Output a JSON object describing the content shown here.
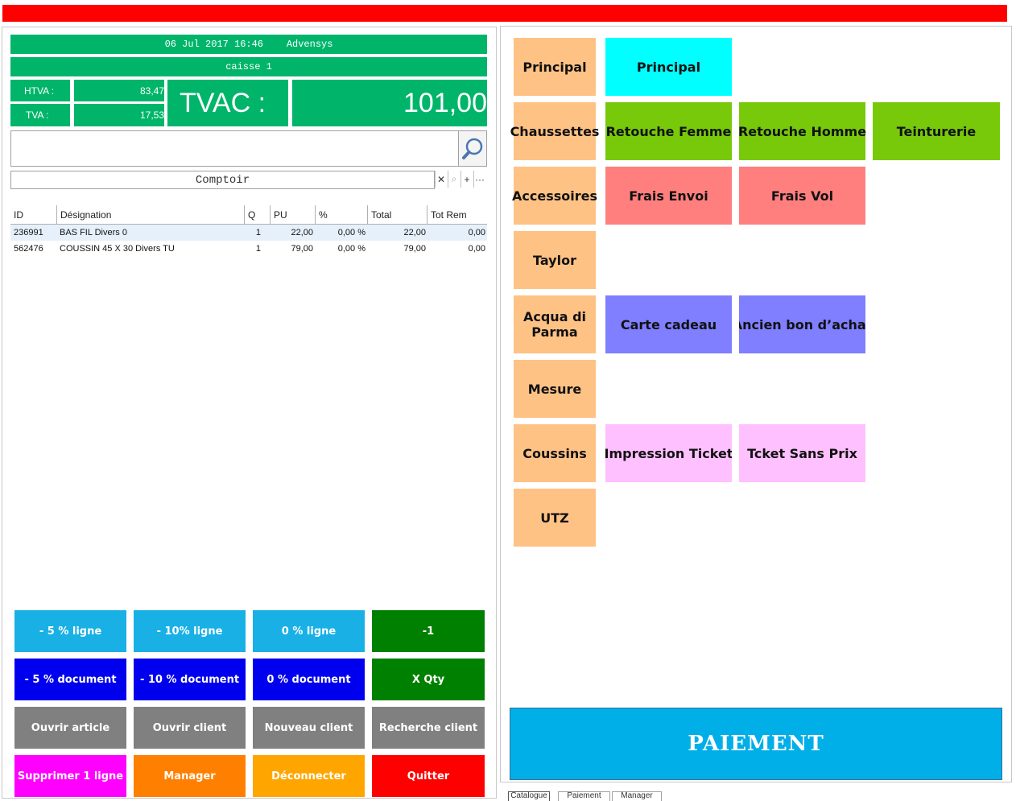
{
  "header": {
    "datetime": "06 Jul 2017 16:46",
    "company": "Advensys",
    "register": "caisse 1"
  },
  "totals": {
    "htva_label": "HTVA :",
    "htva_value": "83,47",
    "tva_label": "TVA :",
    "tva_value": "17,53",
    "tvac_label": "TVAC :",
    "tvac_value": "101,00"
  },
  "search": {
    "value": ""
  },
  "customer": {
    "name": "Comptoir",
    "clear_label": "✕",
    "search_label": "⌕",
    "add_label": "+",
    "more_label": "···"
  },
  "table": {
    "headers": [
      "ID",
      "Désignation",
      "Q",
      "PU",
      "%",
      "Total",
      "Tot Rem"
    ],
    "rows": [
      [
        "236991",
        "BAS FIL Divers 0",
        "1",
        "22,00",
        "0,00 %",
        "22,00",
        "0,00"
      ],
      [
        "562476",
        "COUSSIN 45 X 30 Divers TU",
        "1",
        "79,00",
        "0,00 %",
        "79,00",
        "0,00"
      ]
    ]
  },
  "actions": {
    "discount_line_5": "- 5 % ligne",
    "discount_line_10": "- 10% ligne",
    "discount_line_0": "0 % ligne",
    "minus_one": "-1",
    "discount_doc_5": "- 5 % document",
    "discount_doc_10": "- 10 % document",
    "discount_doc_0": "0 % document",
    "x_qty": "X Qty",
    "open_article": "Ouvrir article",
    "open_client": "Ouvrir client",
    "new_client": "Nouveau client",
    "search_client": "Recherche client",
    "delete_line": "Supprimer 1 ligne",
    "manager": "Manager",
    "disconnect": "Déconnecter",
    "quit": "Quitter"
  },
  "categories": [
    "Principal",
    "Chaussettes",
    "Accessoires",
    "Taylor",
    "Acqua di Parma",
    "Mesure",
    "Coussins",
    "UTZ"
  ],
  "products": {
    "principal": "Principal",
    "retouche_femme": "Retouche Femme",
    "retouche_homme": "Retouche Homme",
    "teinturerie": "Teinturerie",
    "frais_envoi": "Frais Envoi",
    "frais_vol": "Frais Vol",
    "carte_cadeau": "Carte cadeau",
    "ancien_bon": "Ancien bon d’achat",
    "impression_ticket": "Impression Ticket",
    "ticket_sans_prix": "Tcket Sans Prix"
  },
  "payment_label": "PAIEMENT",
  "tabs": [
    "Catalogue",
    "Paiement",
    "Manager"
  ],
  "colors": {
    "top_bar": "#ff0000",
    "summary_green": "#00b56a",
    "category_tile": "#ffc285",
    "cyan": "#00ffff",
    "green_tile": "#77c90a",
    "red_tile": "#ff7f7f",
    "purple_tile": "#7f7fff",
    "pink_tile": "#ffc0ff",
    "payment": "#00aee8",
    "light_blue_btn": "#19b0e6",
    "blue_btn": "#0000ee",
    "dark_green_btn": "#008000",
    "grey_btn": "#808080",
    "magenta_btn": "#ff00ff",
    "orange_btn": "#ff8000",
    "amber_btn": "#ffa500",
    "red_btn": "#ff0000"
  }
}
